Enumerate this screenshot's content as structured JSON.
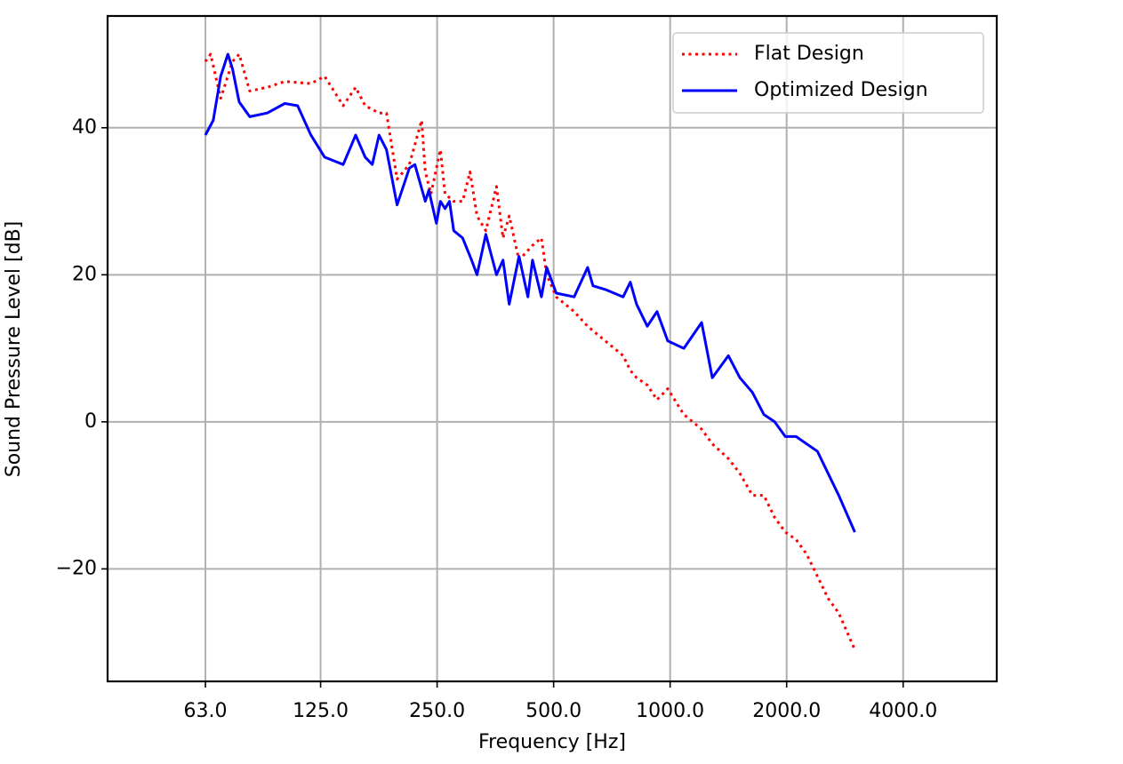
{
  "chart_data": {
    "type": "line",
    "xlabel": "Frequency [Hz]",
    "ylabel": "Sound Pressure Level [dB]",
    "xscale": "log",
    "grid": true,
    "legend": "upper right",
    "xlim": [
      35.2,
      6980
    ],
    "ylim": [
      -35.3,
      55.2
    ],
    "xticks": [
      {
        "value": 63,
        "label": "63.0"
      },
      {
        "value": 125,
        "label": "125.0"
      },
      {
        "value": 250,
        "label": "250.0"
      },
      {
        "value": 500,
        "label": "500.0"
      },
      {
        "value": 1000,
        "label": "1000.0"
      },
      {
        "value": 2000,
        "label": "2000.0"
      },
      {
        "value": 4000,
        "label": "4000.0"
      }
    ],
    "yticks": [
      {
        "value": -20,
        "label": "−20"
      },
      0,
      20,
      40
    ],
    "series": [
      {
        "name": "Flat Design",
        "color": "#ff0000",
        "style": "dotted",
        "x": [
          63,
          65,
          69,
          74,
          77,
          82,
          91,
          101,
          118,
          128,
          143,
          154,
          163,
          177,
          185,
          197,
          212,
          228,
          233,
          241,
          255,
          262,
          276,
          291,
          304,
          317,
          334,
          356,
          370,
          384,
          407,
          441,
          465,
          480,
          508,
          565,
          612,
          680,
          756,
          789,
          819,
          873,
          925,
          986,
          1085,
          1206,
          1285,
          1414,
          1514,
          1631,
          1747,
          1862,
          1984,
          2115,
          2253,
          2402,
          2559,
          2727,
          3000
        ],
        "values": [
          49,
          50,
          44,
          49,
          50,
          45,
          45.5,
          46.3,
          46,
          47,
          43,
          45.5,
          43,
          42,
          42,
          33,
          35,
          41,
          34,
          31,
          37,
          31,
          30,
          30,
          34,
          28,
          26,
          32,
          25,
          28,
          22,
          24,
          25,
          20,
          17,
          15,
          13,
          11,
          9,
          7,
          6,
          5,
          3,
          4.5,
          1,
          -1,
          -3,
          -5,
          -7,
          -10,
          -10,
          -13,
          -15,
          -16,
          -18,
          -21,
          -24,
          -26,
          -31
        ]
      },
      {
        "name": "Optimized Design",
        "color": "#0000ff",
        "style": "solid",
        "x": [
          63,
          66,
          69,
          72,
          74,
          77,
          82,
          91,
          101,
          109,
          118,
          128,
          143,
          154,
          163,
          170,
          177,
          185,
          197,
          212,
          219,
          233,
          238,
          249,
          255,
          262,
          269,
          276,
          291,
          307,
          317,
          334,
          356,
          370,
          384,
          407,
          429,
          441,
          465,
          480,
          508,
          565,
          612,
          632,
          680,
          756,
          789,
          819,
          873,
          925,
          986,
          1085,
          1206,
          1285,
          1414,
          1514,
          1631,
          1747,
          1862,
          1984,
          2115,
          2253,
          2402,
          2559,
          2727,
          3000
        ],
        "values": [
          39,
          41,
          47,
          50,
          48,
          43.5,
          41.5,
          42,
          43.3,
          43,
          39,
          36,
          35,
          39,
          36,
          35,
          39,
          37,
          29.5,
          34.5,
          35,
          30,
          31.5,
          27,
          30,
          29,
          30,
          26,
          25,
          22,
          20,
          25.5,
          20,
          22,
          16,
          22.5,
          17,
          22,
          17,
          21,
          17.5,
          17,
          21,
          18.5,
          18,
          17,
          19,
          16,
          13,
          15,
          11,
          10,
          13.5,
          6,
          9,
          6,
          4,
          1,
          0,
          -2,
          -2,
          -3,
          -4,
          -7,
          -10,
          -15
        ]
      }
    ]
  }
}
